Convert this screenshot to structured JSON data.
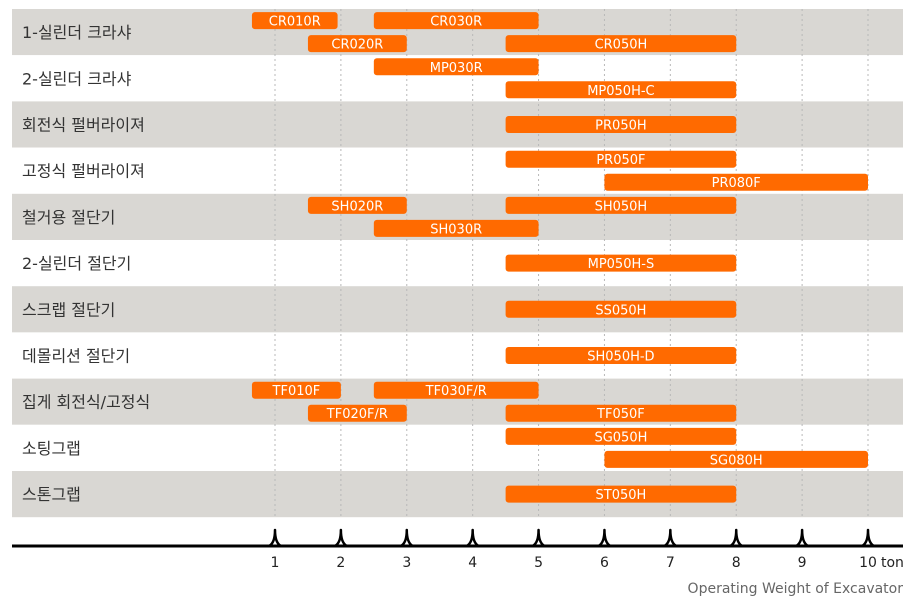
{
  "chart_data": {
    "type": "bar",
    "orientation": "horizontal-range",
    "xlabel": "Operating Weight of Excavator",
    "x_unit": "ton",
    "xlim": [
      1,
      10
    ],
    "x_ticks": [
      "1",
      "2",
      "3",
      "4",
      "5",
      "6",
      "7",
      "8",
      "9",
      "10"
    ],
    "grid": true,
    "colors": {
      "bar": "#ff6a00",
      "row_shade": "#d9d7d3",
      "row_plain": "#ffffff",
      "grid": "#b8b8b8",
      "axis": "#000000"
    },
    "rows": [
      {
        "label": "1-실린더 크라샤",
        "shaded": true,
        "bars": [
          {
            "name": "CR010R",
            "start": 0.65,
            "end": 1.95,
            "lane": 0
          },
          {
            "name": "CR030R",
            "start": 2.5,
            "end": 5.0,
            "lane": 0
          },
          {
            "name": "CR020R",
            "start": 1.5,
            "end": 3.0,
            "lane": 1
          },
          {
            "name": "CR050H",
            "start": 4.5,
            "end": 8.0,
            "lane": 1
          }
        ]
      },
      {
        "label": "2-실린더 크라샤",
        "shaded": false,
        "bars": [
          {
            "name": "MP030R",
            "start": 2.5,
            "end": 5.0,
            "lane": 0
          },
          {
            "name": "MP050H-C",
            "start": 4.5,
            "end": 8.0,
            "lane": 1
          }
        ]
      },
      {
        "label": "회전식 펄버라이져",
        "shaded": true,
        "bars": [
          {
            "name": "PR050H",
            "start": 4.5,
            "end": 8.0,
            "lane": "mid"
          }
        ]
      },
      {
        "label": "고정식 펄버라이져",
        "shaded": false,
        "bars": [
          {
            "name": "PR050F",
            "start": 4.5,
            "end": 8.0,
            "lane": 0
          },
          {
            "name": "PR080F",
            "start": 6.0,
            "end": 10.0,
            "lane": 1
          }
        ]
      },
      {
        "label": "철거용 절단기",
        "shaded": true,
        "bars": [
          {
            "name": "SH020R",
            "start": 1.5,
            "end": 3.0,
            "lane": 0
          },
          {
            "name": "SH050H",
            "start": 4.5,
            "end": 8.0,
            "lane": 0
          },
          {
            "name": "SH030R",
            "start": 2.5,
            "end": 5.0,
            "lane": 1
          }
        ]
      },
      {
        "label": "2-실린더 절단기",
        "shaded": false,
        "bars": [
          {
            "name": "MP050H-S",
            "start": 4.5,
            "end": 8.0,
            "lane": "mid"
          }
        ]
      },
      {
        "label": "스크랩 절단기",
        "shaded": true,
        "bars": [
          {
            "name": "SS050H",
            "start": 4.5,
            "end": 8.0,
            "lane": "mid"
          }
        ]
      },
      {
        "label": "데몰리션 절단기",
        "shaded": false,
        "bars": [
          {
            "name": "SH050H-D",
            "start": 4.5,
            "end": 8.0,
            "lane": "mid"
          }
        ]
      },
      {
        "label": "집게 회전식/고정식",
        "shaded": true,
        "bars": [
          {
            "name": "TF010F",
            "start": 0.65,
            "end": 2.0,
            "lane": 0
          },
          {
            "name": "TF030F/R",
            "start": 2.5,
            "end": 5.0,
            "lane": 0
          },
          {
            "name": "TF020F/R",
            "start": 1.5,
            "end": 3.0,
            "lane": 1
          },
          {
            "name": "TF050F",
            "start": 4.5,
            "end": 8.0,
            "lane": 1
          }
        ]
      },
      {
        "label": "소팅그랩",
        "shaded": false,
        "bars": [
          {
            "name": "SG050H",
            "start": 4.5,
            "end": 8.0,
            "lane": 0
          },
          {
            "name": "SG080H",
            "start": 6.0,
            "end": 10.0,
            "lane": 1
          }
        ]
      },
      {
        "label": "스톤그랩",
        "shaded": true,
        "bars": [
          {
            "name": "ST050H",
            "start": 4.5,
            "end": 8.0,
            "lane": "mid"
          }
        ]
      }
    ]
  }
}
